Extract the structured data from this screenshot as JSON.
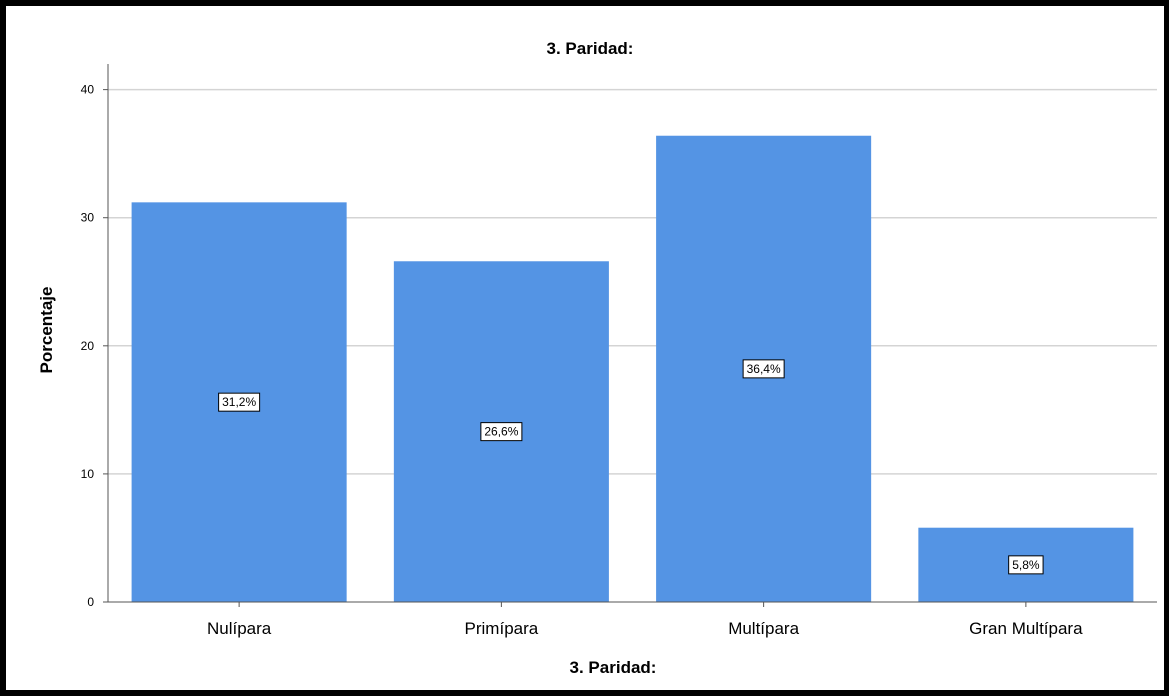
{
  "chart_data": {
    "type": "bar",
    "title": "3. Paridad:",
    "xlabel": "3. Paridad:",
    "ylabel": "Porcentaje",
    "categories": [
      "Nulípara",
      "Primípara",
      "Multípara",
      "Gran Multípara"
    ],
    "values": [
      31.2,
      26.6,
      36.4,
      5.8
    ],
    "data_labels": [
      "31,2%",
      "26,6%",
      "36,4%",
      "5,8%"
    ],
    "ylim": [
      0,
      42
    ],
    "yticks": [
      0,
      10,
      20,
      30,
      40
    ],
    "grid": true,
    "legend": "none",
    "colors": {
      "bar": "#5494e4",
      "grid": "#d4d4d4",
      "axis": "#555555",
      "frame": "#000000"
    }
  }
}
